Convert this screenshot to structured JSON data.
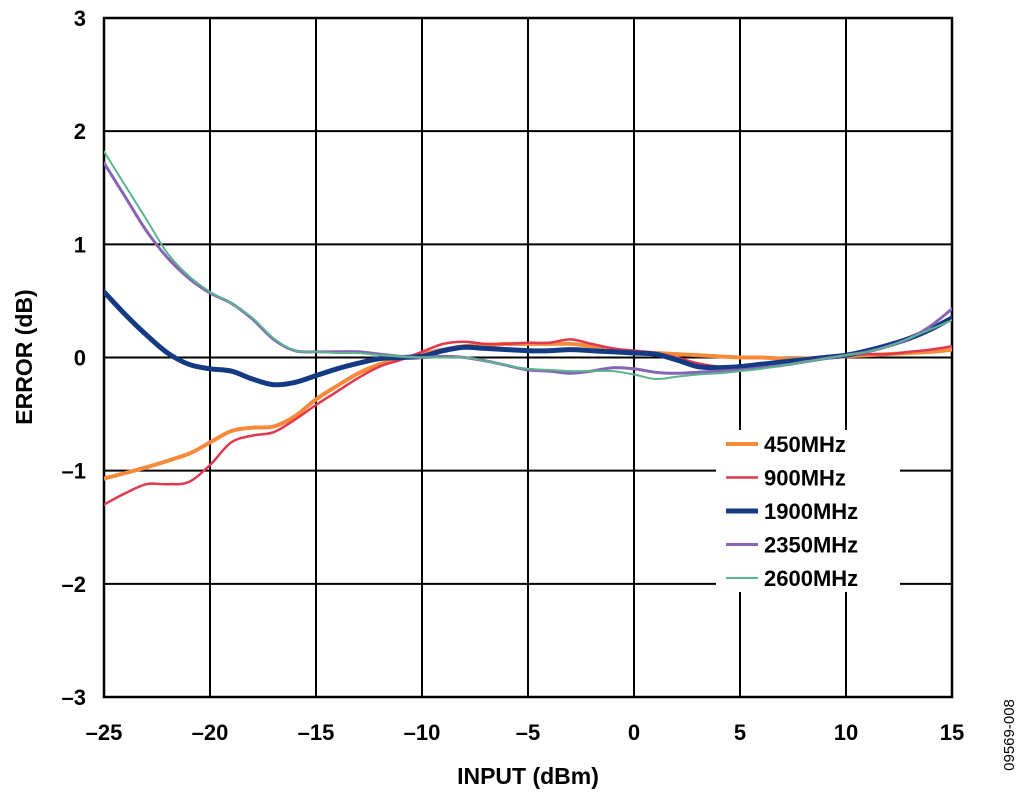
{
  "chart_data": {
    "type": "line",
    "xlabel": "INPUT (dBm)",
    "ylabel": "ERROR (dB)",
    "xlim": [
      -25,
      15
    ],
    "ylim": [
      -3,
      3
    ],
    "x_ticks": [
      -25,
      -20,
      -15,
      -10,
      -5,
      0,
      5,
      10,
      15
    ],
    "y_ticks": [
      -3,
      -2,
      -1,
      0,
      1,
      2,
      3
    ],
    "x_tick_labels": [
      "–25",
      "–20",
      "–15",
      "–10",
      "–5",
      "0",
      "5",
      "10",
      "15"
    ],
    "y_tick_labels": [
      "–3",
      "–2",
      "–1",
      "0",
      "1",
      "2",
      "3"
    ],
    "grid": true,
    "legend_position": "lower-right",
    "figure_id": "09569-008",
    "series": [
      {
        "name": "450MHz",
        "color": "#F58A3A",
        "width": 4,
        "x": [
          -25,
          -23,
          -21,
          -20,
          -19,
          -18,
          -17,
          -16,
          -15,
          -14,
          -13,
          -12,
          -11,
          -10,
          -9,
          -8,
          -7,
          -6,
          -5,
          -4,
          -3,
          -2,
          -1,
          0,
          1,
          2,
          3,
          4,
          5,
          6,
          7,
          8,
          9,
          10,
          11,
          12,
          13,
          14,
          15
        ],
        "y": [
          -1.07,
          -0.97,
          -0.85,
          -0.75,
          -0.65,
          -0.62,
          -0.61,
          -0.52,
          -0.37,
          -0.25,
          -0.14,
          -0.06,
          -0.01,
          0.03,
          0.07,
          0.1,
          0.11,
          0.12,
          0.12,
          0.12,
          0.12,
          0.1,
          0.07,
          0.05,
          0.04,
          0.03,
          0.02,
          0.01,
          0.0,
          0.0,
          -0.01,
          -0.01,
          0.0,
          0.01,
          0.02,
          0.03,
          0.04,
          0.05,
          0.07
        ]
      },
      {
        "name": "900MHz",
        "color": "#E0394F",
        "width": 2.5,
        "x": [
          -25,
          -24,
          -23,
          -22,
          -21,
          -20,
          -19,
          -18,
          -17,
          -16,
          -15,
          -14,
          -13,
          -12,
          -11,
          -10,
          -9,
          -8,
          -7,
          -6,
          -5,
          -4,
          -3,
          -2,
          -1,
          0,
          1,
          2,
          3,
          4,
          5,
          6,
          7,
          8,
          9,
          10,
          11,
          12,
          13,
          14,
          15
        ],
        "y": [
          -1.3,
          -1.2,
          -1.12,
          -1.12,
          -1.1,
          -0.95,
          -0.75,
          -0.69,
          -0.66,
          -0.55,
          -0.42,
          -0.3,
          -0.18,
          -0.08,
          -0.02,
          0.05,
          0.12,
          0.14,
          0.12,
          0.12,
          0.13,
          0.13,
          0.16,
          0.12,
          0.08,
          0.06,
          0.04,
          0.0,
          -0.05,
          -0.08,
          -0.08,
          -0.06,
          -0.04,
          -0.02,
          0.0,
          0.02,
          0.03,
          0.03,
          0.05,
          0.07,
          0.1
        ]
      },
      {
        "name": "1900MHz",
        "color": "#143A84",
        "width": 5,
        "x": [
          -25,
          -24,
          -23,
          -22,
          -21,
          -20,
          -19,
          -18,
          -17,
          -16,
          -15,
          -14,
          -13,
          -12,
          -11,
          -10,
          -9,
          -8,
          -7,
          -6,
          -5,
          -4,
          -3,
          -2,
          -1,
          0,
          1,
          2,
          3,
          4,
          5,
          6,
          7,
          8,
          9,
          10,
          11,
          12,
          13,
          14,
          15
        ],
        "y": [
          0.58,
          0.38,
          0.2,
          0.04,
          -0.06,
          -0.1,
          -0.12,
          -0.19,
          -0.24,
          -0.22,
          -0.16,
          -0.1,
          -0.05,
          -0.01,
          0.0,
          0.01,
          0.06,
          0.09,
          0.08,
          0.07,
          0.06,
          0.06,
          0.07,
          0.06,
          0.05,
          0.04,
          0.03,
          -0.02,
          -0.08,
          -0.09,
          -0.08,
          -0.06,
          -0.04,
          -0.02,
          0.0,
          0.02,
          0.06,
          0.11,
          0.17,
          0.25,
          0.35
        ]
      },
      {
        "name": "2350MHz",
        "color": "#8665B5",
        "width": 3,
        "x": [
          -25,
          -24,
          -23,
          -22,
          -21,
          -20,
          -19,
          -18,
          -17,
          -16,
          -15,
          -14,
          -13,
          -12,
          -11,
          -10,
          -9,
          -8,
          -7,
          -6,
          -5,
          -4,
          -3,
          -2,
          -1,
          0,
          1,
          2,
          3,
          4,
          5,
          6,
          7,
          8,
          9,
          10,
          11,
          12,
          13,
          14,
          15
        ],
        "y": [
          1.72,
          1.42,
          1.12,
          0.88,
          0.7,
          0.57,
          0.48,
          0.34,
          0.16,
          0.06,
          0.05,
          0.05,
          0.05,
          0.03,
          0.01,
          0.0,
          0.01,
          0.0,
          -0.03,
          -0.07,
          -0.11,
          -0.12,
          -0.14,
          -0.12,
          -0.09,
          -0.1,
          -0.13,
          -0.14,
          -0.13,
          -0.12,
          -0.11,
          -0.09,
          -0.07,
          -0.04,
          -0.01,
          0.02,
          0.05,
          0.1,
          0.17,
          0.28,
          0.43
        ]
      },
      {
        "name": "2600MHz",
        "color": "#5BB48C",
        "width": 2,
        "x": [
          -25,
          -24,
          -23,
          -22,
          -21,
          -20,
          -19,
          -18,
          -17,
          -16,
          -15,
          -14,
          -13,
          -12,
          -11,
          -10,
          -9,
          -8,
          -7,
          -6,
          -5,
          -4,
          -3,
          -2,
          -1,
          0,
          1,
          2,
          3,
          4,
          5,
          6,
          7,
          8,
          9,
          10,
          11,
          12,
          13,
          14,
          15
        ],
        "y": [
          1.82,
          1.52,
          1.22,
          0.92,
          0.72,
          0.58,
          0.48,
          0.35,
          0.17,
          0.06,
          0.05,
          0.04,
          0.04,
          0.02,
          0.01,
          0.0,
          0.0,
          0.0,
          -0.03,
          -0.07,
          -0.1,
          -0.11,
          -0.12,
          -0.12,
          -0.12,
          -0.15,
          -0.19,
          -0.17,
          -0.15,
          -0.14,
          -0.12,
          -0.1,
          -0.07,
          -0.04,
          -0.01,
          0.02,
          0.05,
          0.1,
          0.17,
          0.25,
          0.33
        ]
      }
    ]
  }
}
